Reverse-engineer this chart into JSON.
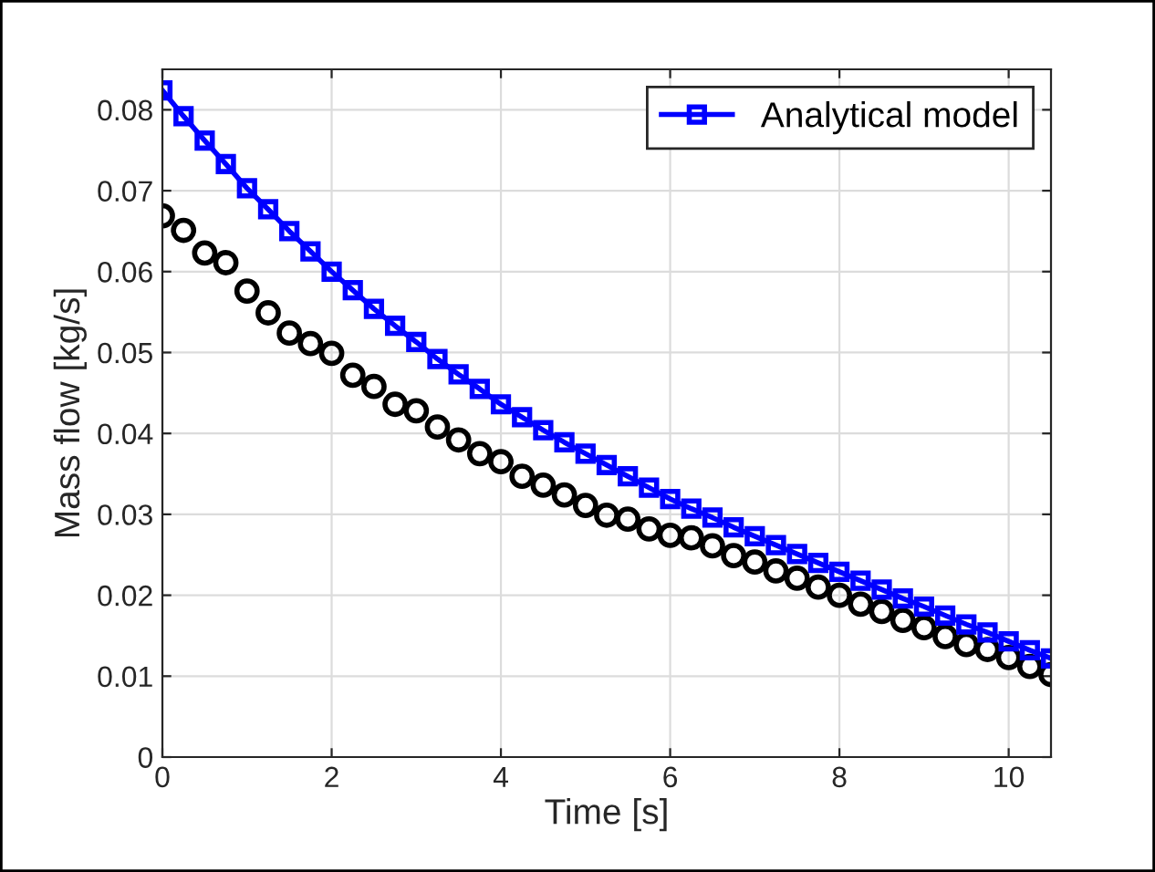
{
  "chart_data": {
    "type": "line",
    "xlabel": "Time [s]",
    "ylabel": "Mass flow [kg/s]",
    "x": [
      0,
      0.25,
      0.5,
      0.75,
      1,
      1.25,
      1.5,
      1.75,
      2,
      2.25,
      2.5,
      2.75,
      3,
      3.25,
      3.5,
      3.75,
      4,
      4.25,
      4.5,
      4.75,
      5,
      5.25,
      5.5,
      5.75,
      6,
      6.25,
      6.5,
      6.75,
      7,
      7.25,
      7.5,
      7.75,
      8,
      8.25,
      8.5,
      8.75,
      9,
      9.25,
      9.5,
      9.75,
      10,
      10.25,
      10.5
    ],
    "series": [
      {
        "type": "scatter",
        "marker": "circle",
        "color": "#000000",
        "values": [
          0.0669,
          0.0651,
          0.0623,
          0.0611,
          0.0576,
          0.0549,
          0.0524,
          0.0511,
          0.0499,
          0.0472,
          0.0458,
          0.0436,
          0.0428,
          0.0408,
          0.0392,
          0.0375,
          0.0365,
          0.0347,
          0.0336,
          0.0324,
          0.0311,
          0.0299,
          0.0294,
          0.0282,
          0.0274,
          0.0271,
          0.0261,
          0.0249,
          0.0241,
          0.023,
          0.0221,
          0.021,
          0.02,
          0.0189,
          0.018,
          0.0169,
          0.016,
          0.0149,
          0.0139,
          0.0133,
          0.0123,
          0.0112,
          0.0102
        ]
      },
      {
        "marker": "square",
        "name": "Analytical model",
        "color": "#0000ff",
        "values": [
          0.0824,
          0.0792,
          0.0762,
          0.0733,
          0.0703,
          0.0677,
          0.065,
          0.0625,
          0.06,
          0.0577,
          0.0554,
          0.0533,
          0.0513,
          0.0492,
          0.0473,
          0.0455,
          0.0436,
          0.042,
          0.0404,
          0.0389,
          0.0375,
          0.0361,
          0.0347,
          0.0333,
          0.0319,
          0.0307,
          0.0296,
          0.0284,
          0.0273,
          0.0262,
          0.0251,
          0.024,
          0.0229,
          0.0218,
          0.0207,
          0.0196,
          0.0186,
          0.0175,
          0.0164,
          0.0154,
          0.0143,
          0.0132,
          0.0122
        ]
      }
    ],
    "xlim": [
      0,
      10.5
    ],
    "xticks": [
      0,
      2,
      4,
      6,
      8,
      10
    ],
    "ylim": [
      0,
      0.085
    ],
    "yticks": [
      0,
      0.01,
      0.02,
      0.03,
      0.04,
      0.05,
      0.06,
      0.07,
      0.08
    ],
    "grid": true,
    "legend": "top right"
  }
}
